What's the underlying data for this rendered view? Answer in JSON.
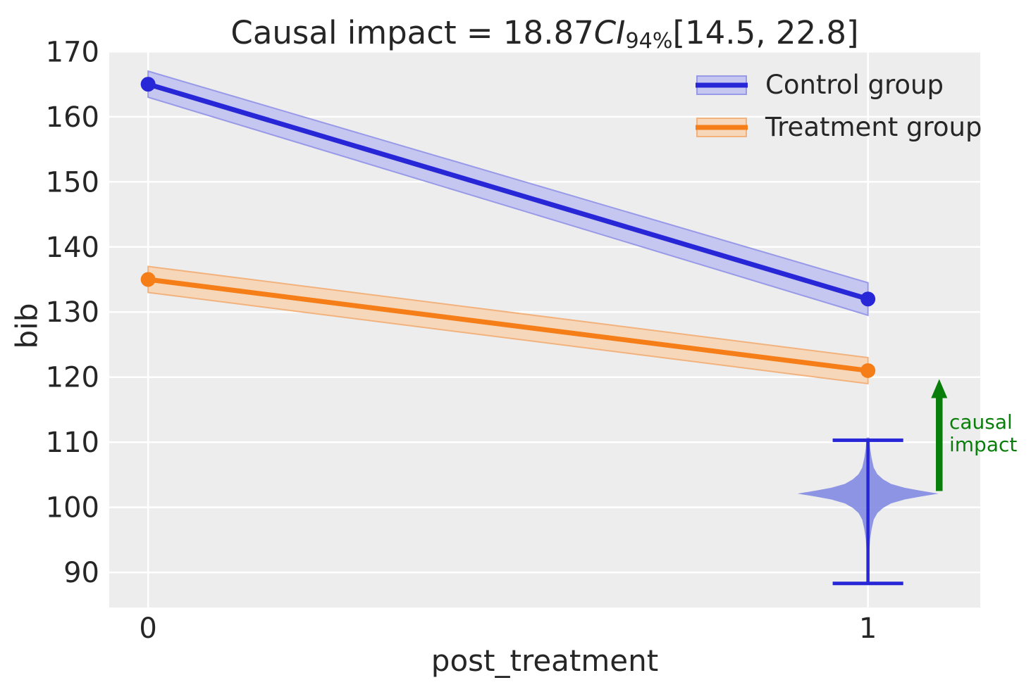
{
  "colors": {
    "figure_bg": "#ffffff",
    "axes_bg": "#ededed",
    "grid": "#ffffff",
    "text": "#262626",
    "impact_green": "#0a7e0a"
  },
  "title": {
    "prefix": "Causal impact = 18.87",
    "ci": "CI",
    "ci_sub": "94%",
    "interval": "[14.5, 22.8]"
  },
  "axis": {
    "xlabel": "post_treatment",
    "ylabel": "bib"
  },
  "legend": {
    "entries": [
      {
        "label": "Control group"
      },
      {
        "label": "Treatment group"
      }
    ]
  },
  "annotation": {
    "line1": "causal",
    "line2": "impact"
  },
  "chart_data": {
    "type": "line",
    "title": "Causal impact = 18.87 CI94% [14.5, 22.8]",
    "xlabel": "post_treatment",
    "ylabel": "bib",
    "xticks": [
      "0",
      "1"
    ],
    "xtick_values": [
      0,
      1
    ],
    "yticks": [
      90,
      100,
      110,
      120,
      130,
      140,
      150,
      160,
      170
    ],
    "xlim": [
      -0.054,
      1.156
    ],
    "ylim": [
      84.6,
      170.15
    ],
    "grid": true,
    "legend_position": "upper right",
    "series": [
      {
        "name": "Control group",
        "x": [
          0,
          1
        ],
        "values": [
          165,
          132
        ],
        "ci_lower": [
          163,
          129.5
        ],
        "ci_upper": [
          167,
          134.5
        ],
        "color": "#2727d8",
        "band_fill": "#c5c7f0",
        "band_edge": "#989ae8"
      },
      {
        "name": "Treatment group",
        "x": [
          0,
          1
        ],
        "values": [
          135,
          121
        ],
        "ci_lower": [
          133,
          119
        ],
        "ci_upper": [
          137,
          123
        ],
        "color": "#f67e18",
        "band_fill": "#f7d7ba",
        "band_edge": "#f2b27d"
      }
    ],
    "violin": {
      "x": 1,
      "mode": 102.1,
      "whisker_low": 88.3,
      "whisker_high": 110.3,
      "cap_halfwidth": 0.049,
      "fill": "#7b84e2",
      "line_color": "#2727d8",
      "profile_dy": [
        -8.6,
        -7,
        -5.5,
        -4,
        -3,
        -2.2,
        -1.5,
        -0.9,
        -0.45,
        0,
        0.45,
        0.9,
        1.5,
        2.2,
        3,
        4,
        5.5,
        7,
        8.6
      ],
      "profile_halfwidth": [
        0.002,
        0.003,
        0.005,
        0.008,
        0.013,
        0.021,
        0.032,
        0.051,
        0.073,
        0.098,
        0.073,
        0.051,
        0.032,
        0.021,
        0.013,
        0.008,
        0.005,
        0.003,
        0.002
      ]
    },
    "impact_arrow": {
      "x": 1.099,
      "y_from": 102.5,
      "y_to": 119.7,
      "label": "causal impact"
    }
  }
}
